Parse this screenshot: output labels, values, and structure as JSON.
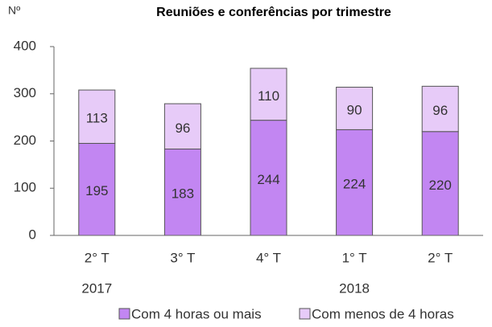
{
  "chart_data": {
    "type": "stacked_bar",
    "title": "Reuniões e conferências por trimestre",
    "y_label": "Nº",
    "categories": [
      "2° T",
      "3° T",
      "4° T",
      "1° T",
      "2° T"
    ],
    "year_labels": [
      "2017",
      null,
      null,
      "2018",
      null
    ],
    "series": [
      {
        "name": "Com 4 horas ou mais",
        "color": "#c286f2",
        "values": [
          195,
          183,
          244,
          224,
          220
        ]
      },
      {
        "name": "Com menos de 4 horas",
        "color": "#e7cbf8",
        "values": [
          113,
          96,
          110,
          90,
          96
        ]
      }
    ],
    "ylim": [
      0,
      400
    ],
    "yticks": [
      0,
      100,
      200,
      300,
      400
    ],
    "grid": false
  }
}
